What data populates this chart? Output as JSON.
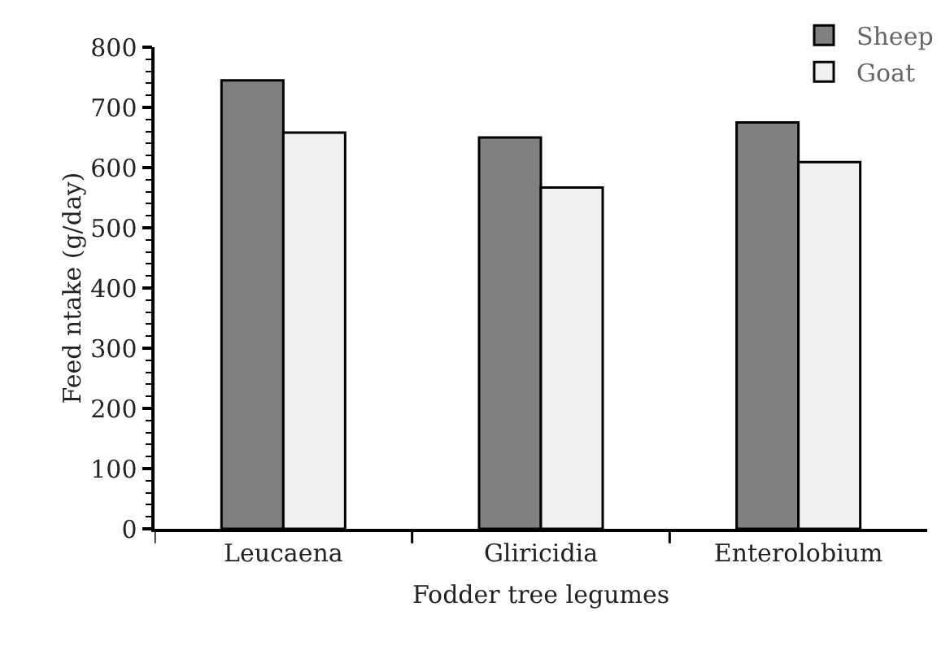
{
  "chart_data": {
    "type": "bar",
    "xlabel": "Fodder tree legumes",
    "ylabel": "Feed ntake (g/day)",
    "categories": [
      "Leucaena",
      "Gliricidia",
      "Enterolobium"
    ],
    "series": [
      {
        "name": "Sheep",
        "color": "#808080",
        "values": [
          745,
          650,
          675
        ]
      },
      {
        "name": "Goat",
        "color": "#f0f0f0",
        "values": [
          658,
          567,
          609
        ]
      }
    ],
    "ylim": [
      0,
      800
    ],
    "yticks": [
      0,
      100,
      200,
      300,
      400,
      500,
      600,
      700,
      800
    ],
    "grid": false,
    "legend": "top right"
  }
}
